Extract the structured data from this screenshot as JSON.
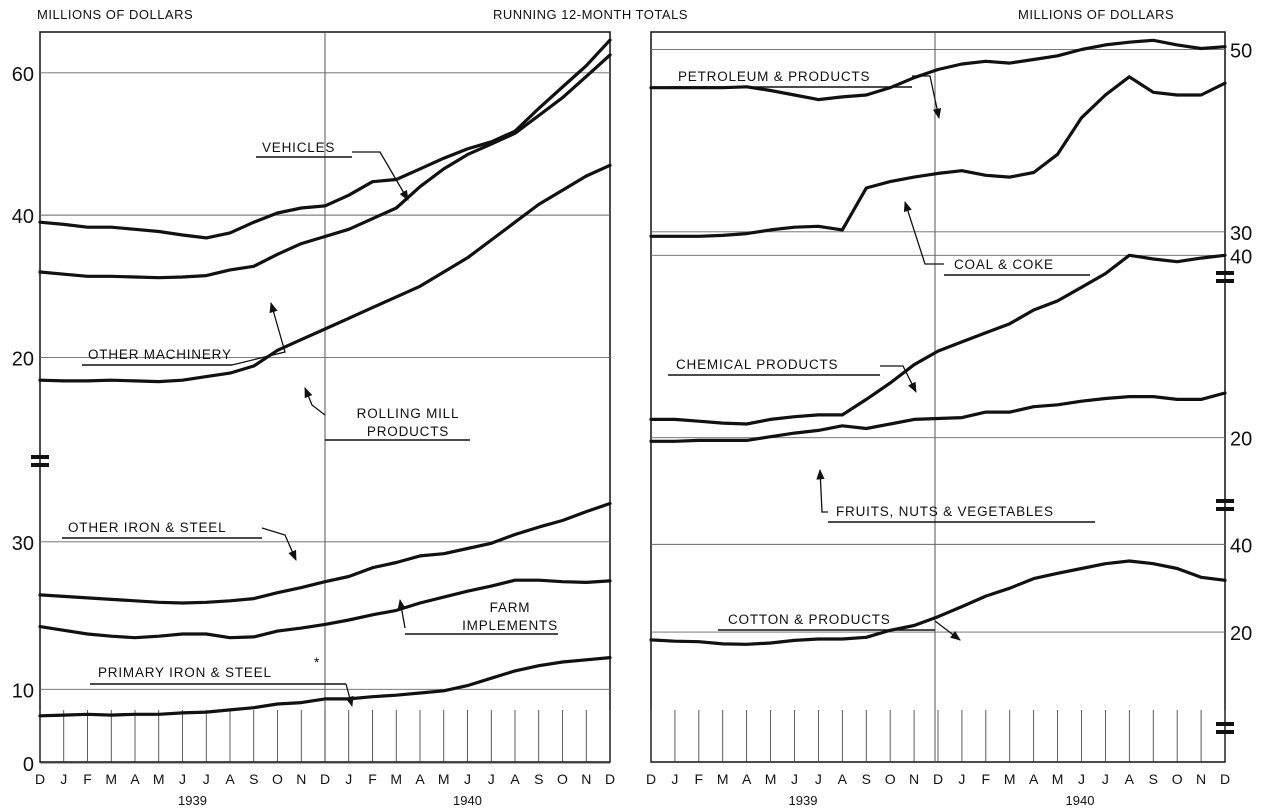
{
  "header": {
    "left_units": "MILLIONS OF DOLLARS",
    "center_title": "RUNNING 12-MONTH TOTALS",
    "right_units": "MILLIONS OF DOLLARS"
  },
  "months": [
    "D",
    "J",
    "F",
    "M",
    "A",
    "M",
    "J",
    "J",
    "A",
    "S",
    "O",
    "N",
    "D",
    "J",
    "F",
    "M",
    "A",
    "M",
    "J",
    "J",
    "A",
    "S",
    "O",
    "N",
    "D"
  ],
  "years": [
    "1939",
    "1940"
  ],
  "chart_data": [
    {
      "type": "line",
      "panel": "left",
      "x_labels": [
        "D",
        "J",
        "F",
        "M",
        "A",
        "M",
        "J",
        "J",
        "A",
        "S",
        "O",
        "N",
        "D",
        "J",
        "F",
        "M",
        "A",
        "M",
        "J",
        "J",
        "A",
        "S",
        "O",
        "N",
        "D"
      ],
      "scale_breaks": true,
      "segments": [
        {
          "name": "upper",
          "ylim": [
            15,
            67
          ],
          "y_ticks": [
            {
              "value": 20,
              "label": "20"
            },
            {
              "value": 40,
              "label": "40"
            },
            {
              "value": 60,
              "label": "60"
            }
          ],
          "series": [
            {
              "name": "VEHICLES",
              "values": [
                39.0,
                38.7,
                38.3,
                38.3,
                38.0,
                37.7,
                37.2,
                36.8,
                37.5,
                39.0,
                40.3,
                41.0,
                41.3,
                42.8,
                44.7,
                45.0,
                46.5,
                48.0,
                49.3,
                50.3,
                51.8,
                55.0,
                58.0,
                61.0,
                64.6
              ]
            },
            {
              "name": "OTHER MACHINERY",
              "values": [
                32.0,
                31.7,
                31.4,
                31.4,
                31.3,
                31.2,
                31.3,
                31.5,
                32.3,
                32.8,
                34.5,
                36.0,
                37.0,
                38.0,
                39.5,
                41.0,
                44.0,
                46.5,
                48.5,
                50.0,
                51.5,
                54.0,
                56.5,
                59.5,
                62.5
              ]
            },
            {
              "name": "ROLLING MILL PRODUCTS",
              "values": [
                16.8,
                16.7,
                16.7,
                16.8,
                16.7,
                16.6,
                16.8,
                17.3,
                17.8,
                18.8,
                21.0,
                22.5,
                24.0,
                25.5,
                27.0,
                28.5,
                30.0,
                32.0,
                34.0,
                36.5,
                39.0,
                41.5,
                43.5,
                45.5,
                47.0
              ]
            }
          ]
        },
        {
          "name": "lower",
          "ylim": [
            0,
            35
          ],
          "y_ticks": [
            {
              "value": 0,
              "label": "0"
            },
            {
              "value": 10,
              "label": "10"
            },
            {
              "value": 30,
              "label": "30"
            }
          ],
          "series": [
            {
              "name": "OTHER IRON & STEEL",
              "values": [
                22.8,
                22.6,
                22.4,
                22.2,
                22.0,
                21.8,
                21.7,
                21.8,
                22.0,
                22.3,
                23.1,
                23.8,
                24.6,
                25.3,
                26.5,
                27.2,
                28.1,
                28.4,
                29.1,
                29.8,
                31.0,
                32.0,
                32.9,
                34.1,
                35.2
              ]
            },
            {
              "name": "FARM IMPLEMENTS",
              "values": [
                18.5,
                18.0,
                17.5,
                17.2,
                17.0,
                17.2,
                17.5,
                17.5,
                17.0,
                17.1,
                17.9,
                18.3,
                18.8,
                19.4,
                20.1,
                20.7,
                21.7,
                22.5,
                23.3,
                24.0,
                24.8,
                24.8,
                24.6,
                24.5,
                24.7
              ]
            },
            {
              "name": "PRIMARY IRON & STEEL*",
              "values": [
                6.4,
                6.5,
                6.6,
                6.5,
                6.6,
                6.6,
                6.8,
                6.9,
                7.2,
                7.5,
                8.0,
                8.2,
                8.7,
                8.7,
                9.0,
                9.2,
                9.5,
                9.8,
                10.5,
                11.5,
                12.5,
                13.2,
                13.7,
                14.0,
                14.3
              ]
            }
          ]
        }
      ]
    },
    {
      "type": "line",
      "panel": "right",
      "x_labels": [
        "D",
        "J",
        "F",
        "M",
        "A",
        "M",
        "J",
        "J",
        "A",
        "S",
        "O",
        "N",
        "D",
        "J",
        "F",
        "M",
        "A",
        "M",
        "J",
        "J",
        "A",
        "S",
        "O",
        "N",
        "D"
      ],
      "scale_breaks": true,
      "segments": [
        {
          "name": "upper",
          "ylim": [
            28,
            54
          ],
          "y_ticks": [
            {
              "value": 30,
              "label": "30"
            },
            {
              "value": 50,
              "label": "50"
            }
          ],
          "series": [
            {
              "name": "PETROLEUM & PRODUCTS",
              "values": [
                45.8,
                45.8,
                45.8,
                45.8,
                45.9,
                45.5,
                45.0,
                44.5,
                44.8,
                45.0,
                45.8,
                46.9,
                47.8,
                48.4,
                48.7,
                48.5,
                48.9,
                49.3,
                50.0,
                50.5,
                50.8,
                51.0,
                50.5,
                50.1,
                50.3
              ]
            },
            {
              "name": "COAL & COKE",
              "values": [
                29.5,
                29.5,
                29.5,
                29.6,
                29.8,
                30.2,
                30.5,
                30.6,
                30.2,
                34.8,
                35.5,
                36.0,
                36.4,
                36.7,
                36.2,
                36.0,
                36.5,
                38.5,
                42.5,
                45.0,
                47.0,
                45.3,
                45.0,
                45.0,
                46.3
              ]
            }
          ]
        },
        {
          "name": "middle",
          "ylim": [
            17,
            43
          ],
          "y_ticks": [
            {
              "value": 20,
              "label": "20"
            },
            {
              "value": 40,
              "label": "40"
            }
          ],
          "series": [
            {
              "name": "CHEMICAL PRODUCTS",
              "values": [
                22.0,
                22.0,
                21.8,
                21.6,
                21.5,
                22.0,
                22.3,
                22.5,
                22.5,
                24.2,
                26.0,
                28.0,
                29.5,
                30.5,
                31.5,
                32.5,
                34.0,
                35.0,
                36.5,
                38.0,
                40.0,
                39.6,
                39.3,
                39.7,
                40.0
              ]
            },
            {
              "name": "FRUITS, NUTS & VEGETABLES",
              "values": [
                19.6,
                19.6,
                19.7,
                19.7,
                19.7,
                20.1,
                20.5,
                20.8,
                21.3,
                21.0,
                21.5,
                22.0,
                22.1,
                22.2,
                22.8,
                22.8,
                23.4,
                23.6,
                24.0,
                24.3,
                24.5,
                24.5,
                24.2,
                24.2,
                24.9
              ]
            }
          ]
        },
        {
          "name": "lower",
          "ylim": [
            7,
            41
          ],
          "y_ticks": [
            {
              "value": 20,
              "label": "20"
            },
            {
              "value": 40,
              "label": "40"
            }
          ],
          "series": [
            {
              "name": "COTTON & PRODUCTS",
              "values": [
                18.2,
                17.9,
                17.8,
                17.3,
                17.2,
                17.5,
                18.1,
                18.4,
                18.4,
                18.8,
                20.4,
                21.5,
                23.5,
                25.8,
                28.2,
                30.0,
                32.2,
                33.4,
                34.5,
                35.6,
                36.2,
                35.6,
                34.5,
                32.5,
                31.8
              ]
            }
          ]
        }
      ]
    }
  ],
  "annotations": {
    "vehicles": "VEHICLES",
    "other_machinery": "OTHER MACHINERY",
    "rolling_mill_1": "ROLLING MILL",
    "rolling_mill_2": "PRODUCTS",
    "other_iron_steel": "OTHER IRON & STEEL",
    "farm_impl_1": "FARM",
    "farm_impl_2": "IMPLEMENTS",
    "primary_iron": "PRIMARY IRON & STEEL",
    "primary_iron_mark": "*",
    "petroleum": "PETROLEUM & PRODUCTS",
    "coal": "COAL & COKE",
    "chemical": "CHEMICAL PRODUCTS",
    "fruits": "FRUITS, NUTS & VEGETABLES",
    "cotton": "COTTON & PRODUCTS"
  }
}
